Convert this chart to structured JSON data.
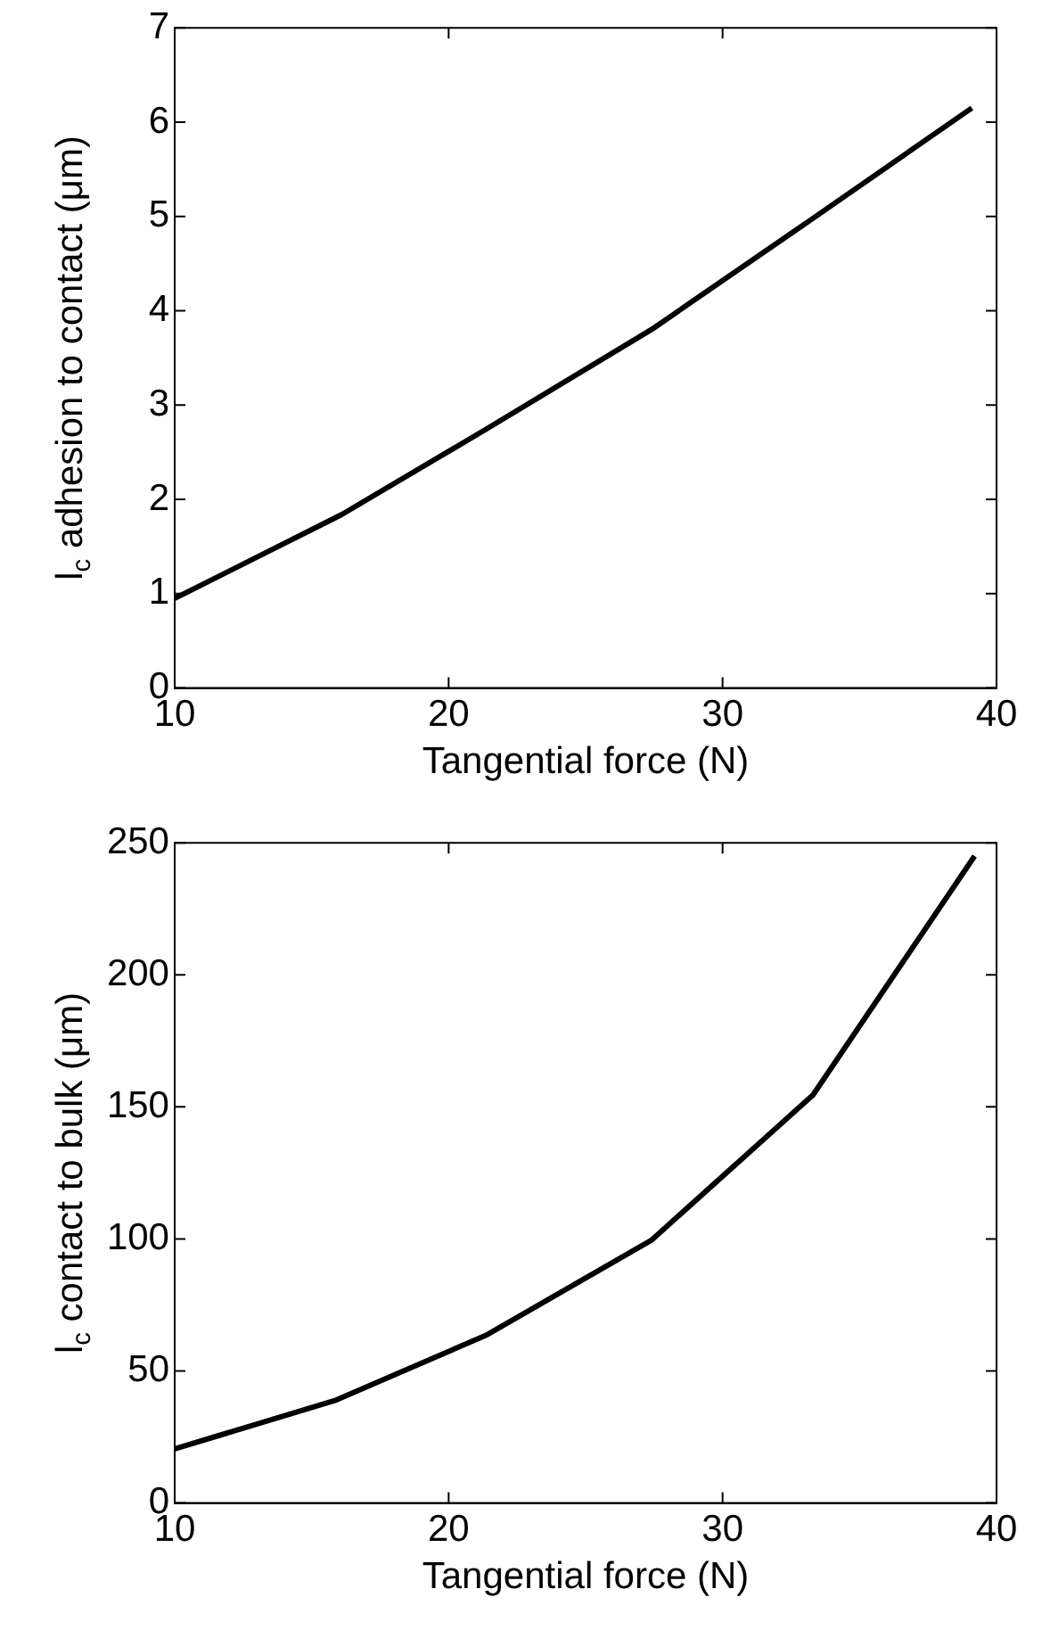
{
  "chart_data": [
    {
      "type": "line",
      "xlabel": "Tangential force (N)",
      "ylabel": "l$_{c}$ adhesion to contact (μm)",
      "xlim": [
        10,
        40
      ],
      "xticks": [
        10,
        20,
        30,
        40
      ],
      "ylim": [
        0,
        7
      ],
      "yticks": [
        0,
        1,
        2,
        3,
        4,
        5,
        6,
        7
      ],
      "grid": false,
      "legend": false,
      "series": [
        {
          "color": "#000000",
          "x": [
            10,
            16.1,
            21.4,
            27.4,
            33.3,
            39.1
          ],
          "values": [
            0.95,
            1.84,
            2.75,
            3.8,
            4.98,
            6.15
          ]
        }
      ]
    },
    {
      "type": "line",
      "xlabel": "Tangential force (N)",
      "ylabel": "l$_{c}$ contact to bulk (μm)",
      "xlim": [
        10,
        40
      ],
      "xticks": [
        10,
        20,
        30,
        40
      ],
      "ylim": [
        0,
        250
      ],
      "yticks": [
        0,
        50,
        100,
        150,
        200,
        250
      ],
      "grid": false,
      "legend": false,
      "series": [
        {
          "color": "#000000",
          "x": [
            10,
            15.9,
            21.4,
            27.4,
            33.3,
            39.2
          ],
          "values": [
            20.5,
            39,
            63.7,
            99.5,
            154.5,
            245
          ]
        }
      ]
    }
  ]
}
